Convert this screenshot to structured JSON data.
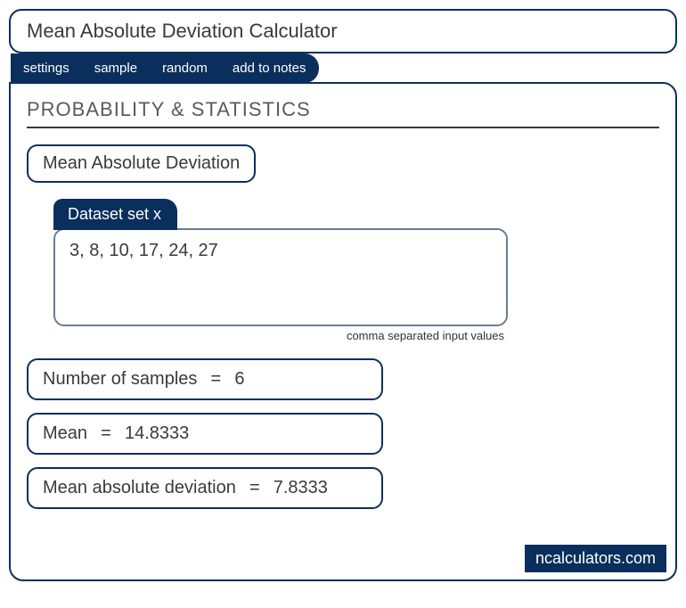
{
  "colors": {
    "primary": "#0a2f5c",
    "border_muted": "#6b7b95",
    "text": "#3a3a3a",
    "heading": "#5a5a5a",
    "background": "#ffffff"
  },
  "title": "Mean Absolute Deviation Calculator",
  "tabs": {
    "settings": "settings",
    "sample": "sample",
    "random": "random",
    "add_to_notes": "add to notes"
  },
  "section_heading": "PROBABILITY & STATISTICS",
  "sub_title": "Mean Absolute Deviation",
  "dataset": {
    "label": "Dataset set x",
    "value": "3, 8, 10, 17, 24, 27",
    "hint": "comma separated input values"
  },
  "results": {
    "samples": {
      "label": "Number of samples",
      "value": "6"
    },
    "mean": {
      "label": "Mean",
      "value": "14.8333"
    },
    "mad": {
      "label": "Mean absolute deviation",
      "value": "7.8333"
    }
  },
  "watermark": "ncalculators.com"
}
